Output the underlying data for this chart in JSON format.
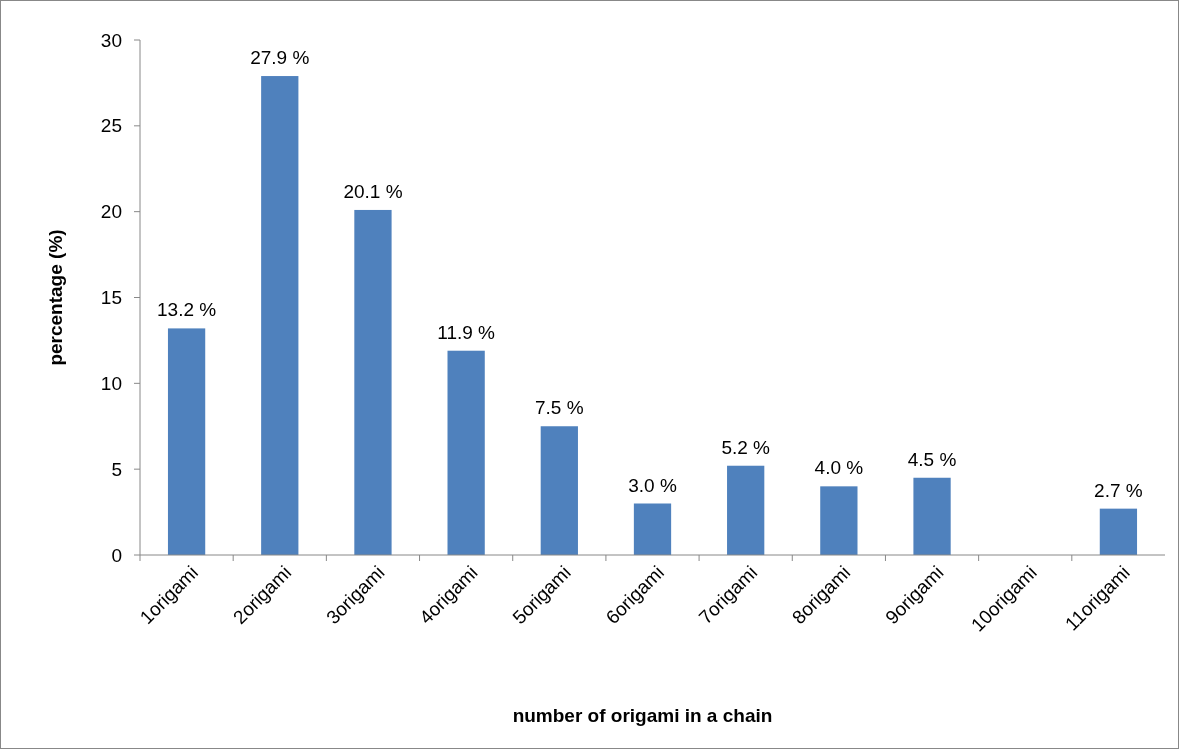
{
  "chart_data": {
    "type": "bar",
    "xlabel": "number of origami in a chain",
    "ylabel": "percentage (%)",
    "categories": [
      "1origami",
      "2origami",
      "3origami",
      "4origami",
      "5origami",
      "6origami",
      "7origami",
      "8origami",
      "9origami",
      "10origami",
      "11origami"
    ],
    "values": [
      13.2,
      27.9,
      20.1,
      11.9,
      7.5,
      3.0,
      5.2,
      4.0,
      4.5,
      null,
      2.7
    ],
    "value_labels": [
      "13.2 %",
      "27.9 %",
      "20.1 %",
      "11.9 %",
      "7.5 %",
      "3.0 %",
      "5.2 %",
      "4.0 %",
      "4.5 %",
      null,
      "2.7 %"
    ],
    "color": "#4f81bd",
    "ylim": [
      0,
      30
    ],
    "yticks": [
      0,
      5,
      10,
      15,
      20,
      25,
      30
    ],
    "grid": false
  }
}
